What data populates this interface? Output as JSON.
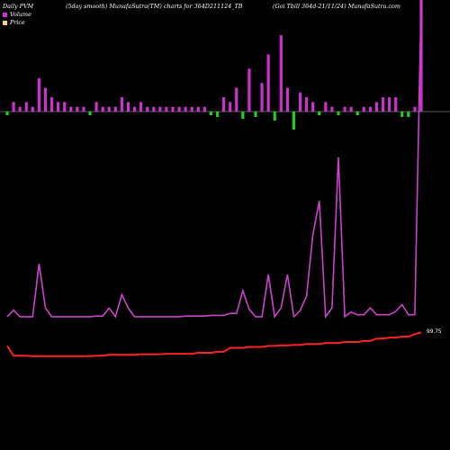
{
  "header": {
    "left": "Daily PVM",
    "center": "(5day smooth) MunafaSutra(TM) charts for 364D211124_TB",
    "right": "(Goi  Tbill 364d-21/11/24) MunafaSutra.com"
  },
  "legend": [
    {
      "label": "Volume",
      "color": "#cc33cc"
    },
    {
      "label": "Price",
      "color": "#ffcc99"
    }
  ],
  "price_label": "99.75",
  "colors": {
    "background": "#000000",
    "volume_up": "#cc33cc",
    "volume_down": "#22cc22",
    "pvm_line": "#cc44cc",
    "price_line": "#ff2222",
    "baseline": "#ffffff"
  },
  "chart_data": {
    "type": "bar+line",
    "x": [
      1,
      2,
      3,
      4,
      5,
      6,
      7,
      8,
      9,
      10,
      11,
      12,
      13,
      14,
      15,
      16,
      17,
      18,
      19,
      20,
      21,
      22,
      23,
      24,
      25,
      26,
      27,
      28,
      29,
      30,
      31,
      32,
      33,
      34,
      35,
      36,
      37,
      38,
      39,
      40,
      41,
      42,
      43,
      44,
      45,
      46,
      47,
      48,
      49,
      50,
      51,
      52,
      53,
      54,
      55,
      56,
      57,
      58,
      59,
      60,
      61,
      62,
      63,
      64,
      65,
      66
    ],
    "series": [
      {
        "name": "Volume",
        "kind": "bar",
        "values": [
          1,
          2,
          1,
          2,
          1,
          7,
          5,
          3,
          2,
          2,
          1,
          1,
          1,
          1,
          2,
          1,
          1,
          1,
          3,
          2,
          1,
          2,
          1,
          1,
          1,
          1,
          1,
          1,
          1,
          1,
          1,
          1,
          1,
          2,
          3,
          2,
          5,
          3,
          9,
          2,
          6,
          12,
          4,
          16,
          5,
          9,
          4,
          3,
          2,
          1,
          2,
          1,
          1,
          1,
          1,
          1,
          1,
          1,
          2,
          3,
          3,
          3,
          2,
          2,
          1,
          40
        ],
        "direction": [
          -1,
          1,
          1,
          1,
          1,
          1,
          1,
          1,
          1,
          1,
          1,
          1,
          1,
          -1,
          1,
          1,
          1,
          1,
          1,
          1,
          1,
          1,
          1,
          1,
          1,
          1,
          1,
          1,
          1,
          1,
          1,
          1,
          -1,
          -1,
          1,
          1,
          1,
          -1,
          1,
          -1,
          1,
          1,
          -1,
          1,
          1,
          -1,
          1,
          1,
          1,
          -1,
          1,
          1,
          -1,
          1,
          1,
          -1,
          1,
          1,
          1,
          1,
          1,
          1,
          -1,
          -1,
          1,
          1
        ]
      },
      {
        "name": "Price",
        "kind": "line",
        "values": [
          99.2,
          98.8,
          98.8,
          98.8,
          98.78,
          98.78,
          98.78,
          98.78,
          98.78,
          98.78,
          98.78,
          98.78,
          98.78,
          98.78,
          98.8,
          98.8,
          98.84,
          98.84,
          98.84,
          98.84,
          98.84,
          98.86,
          98.86,
          98.86,
          98.86,
          98.88,
          98.88,
          98.88,
          98.88,
          98.88,
          98.92,
          98.92,
          98.92,
          98.96,
          98.96,
          99.12,
          99.12,
          99.12,
          99.16,
          99.16,
          99.16,
          99.2,
          99.2,
          99.22,
          99.22,
          99.24,
          99.24,
          99.28,
          99.28,
          99.28,
          99.32,
          99.32,
          99.32,
          99.36,
          99.36,
          99.36,
          99.4,
          99.4,
          99.5,
          99.5,
          99.54,
          99.54,
          99.58,
          99.58,
          99.68,
          99.75
        ]
      }
    ],
    "pvm_line": [
      27,
      37,
      27,
      27,
      27,
      106,
      40,
      27,
      27,
      27,
      27,
      27,
      27,
      27,
      28,
      28,
      40,
      27,
      60,
      40,
      27,
      27,
      27,
      27,
      27,
      27,
      27,
      27,
      28,
      28,
      28,
      28,
      29,
      29,
      29,
      32,
      32,
      66,
      38,
      27,
      27,
      90,
      27,
      40,
      90,
      27,
      36,
      58,
      150,
      200,
      27,
      40,
      265,
      27,
      34,
      30,
      30,
      40,
      30,
      30,
      30,
      35,
      45,
      30,
      30,
      500
    ]
  }
}
